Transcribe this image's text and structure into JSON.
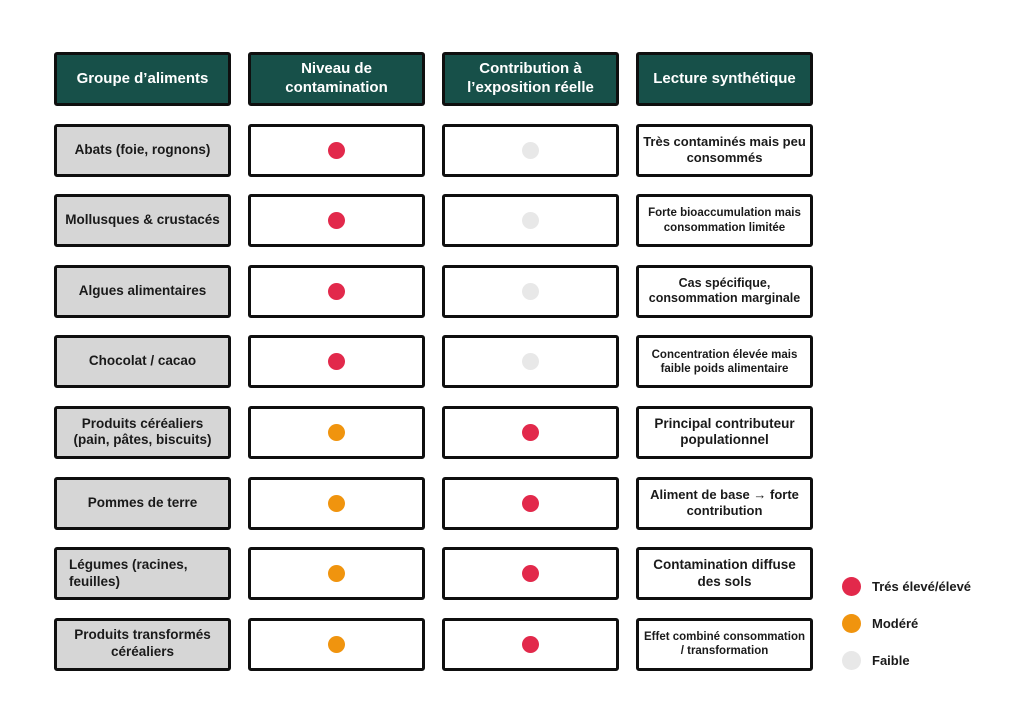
{
  "header": {
    "col_group": "Groupe d’aliments",
    "col_contamination": "Niveau de contamination",
    "col_exposure": "Contribution à l’exposition réelle",
    "col_synthesis": "Lecture synthétique"
  },
  "levels": {
    "eleve": "#e2294b",
    "modere": "#f0940e",
    "faible": "#e8e8e8"
  },
  "rows": [
    {
      "group": "Abats (foie, rognons)",
      "contamination": "eleve",
      "exposure": "faible",
      "synthesis": "Très contaminés mais peu consommés"
    },
    {
      "group": "Mollusques & crustacés",
      "contamination": "eleve",
      "exposure": "faible",
      "synthesis": "Forte bioaccumulation mais consommation limitée"
    },
    {
      "group": "Algues alimentaires",
      "contamination": "eleve",
      "exposure": "faible",
      "synthesis": "Cas spécifique, consommation marginale"
    },
    {
      "group": "Chocolat / cacao",
      "contamination": "eleve",
      "exposure": "faible",
      "synthesis": "Concentration élevée mais faible poids alimentaire"
    },
    {
      "group": "Produits céréaliers (pain, pâtes, biscuits)",
      "contamination": "modere",
      "exposure": "eleve",
      "synthesis": "Principal contributeur populationnel"
    },
    {
      "group": "Pommes de terre",
      "contamination": "modere",
      "exposure": "eleve",
      "synthesis": "Aliment de base → forte contribution"
    },
    {
      "group": "Légumes (racines, feuilles)",
      "contamination": "modere",
      "exposure": "eleve",
      "synthesis": "Contamination diffuse des sols"
    },
    {
      "group": "Produits transformés céréaliers",
      "contamination": "modere",
      "exposure": "eleve",
      "synthesis": "Effet combiné consommation / transformation"
    }
  ],
  "legend": [
    {
      "label": "Trés élevé/élevé",
      "level": "eleve"
    },
    {
      "label": "Modéré",
      "level": "modere"
    },
    {
      "label": "Faible",
      "level": "faible"
    }
  ],
  "colors": {
    "header_bg": "#175049",
    "row_label_bg": "#d6d6d6",
    "border": "#0f0f0f",
    "background": "#ffffff"
  }
}
